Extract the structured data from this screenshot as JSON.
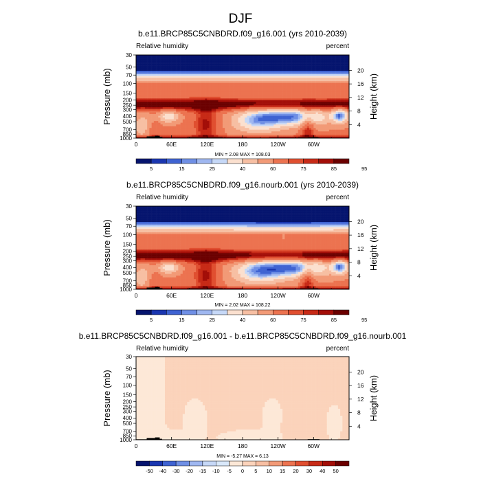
{
  "title": "DJF",
  "colors": {
    "rh_scale": [
      "#05146e",
      "#1a36b0",
      "#3f63d2",
      "#6f8fe5",
      "#9fb7f0",
      "#c6d8f7",
      "#fbe0cf",
      "#f7bfa3",
      "#f29a77",
      "#ec7350",
      "#e04f30",
      "#c72a17",
      "#a30e08",
      "#6b0000"
    ],
    "diff_scale": [
      "#05146e",
      "#1a36b0",
      "#3f63d2",
      "#6f8fe5",
      "#9fb7f0",
      "#c6d8f7",
      "#d9e8fa",
      "#fde8d7",
      "#fbd3bb",
      "#f7bfa3",
      "#f29a77",
      "#ec7350",
      "#e04f30",
      "#c72a17",
      "#a30e08",
      "#6b0000"
    ],
    "terrain": "#000000"
  },
  "chart_data": [
    {
      "type": "heatmap",
      "panel_title": "b.e11.BRCP85C5CNBDRD.f09_g16.001 (yrs 2010-2039)",
      "left_label": "Relative humidity",
      "right_label": "percent",
      "ylabel": "Pressure (mb)",
      "y2label": "Height (km)",
      "x_ticks": [
        "0",
        "60E",
        "120E",
        "180",
        "120W",
        "60W"
      ],
      "x_tick_values": [
        0,
        60,
        120,
        180,
        240,
        300
      ],
      "x_range": [
        0,
        360
      ],
      "y_ticks": [
        "1000",
        "850",
        "700",
        "500",
        "400",
        "300",
        "250",
        "200",
        "150",
        "100",
        "70",
        "50",
        "30"
      ],
      "y_tick_values": [
        1000,
        850,
        700,
        500,
        400,
        300,
        250,
        200,
        150,
        100,
        70,
        50,
        30
      ],
      "y_range": [
        1000,
        30
      ],
      "y2_ticks": [
        "4",
        "8",
        "12",
        "16",
        "20"
      ],
      "y2_tick_values": [
        4,
        8,
        12,
        16,
        20
      ],
      "min_max": "MIN =   2.08  MAX = 108.03",
      "levels": [
        5,
        10,
        15,
        20,
        25,
        30,
        40,
        50,
        60,
        70,
        75,
        80,
        85,
        90,
        95
      ],
      "colorbar_labels": [
        "5",
        "15",
        "25",
        "40",
        "60",
        "75",
        "85",
        "95"
      ],
      "kind": "rh"
    },
    {
      "type": "heatmap",
      "panel_title": "b.e11.BRCP85C5CNBDRD.f09_g16.nourb.001 (yrs 2010-2039)",
      "left_label": "Relative humidity",
      "right_label": "percent",
      "ylabel": "Pressure (mb)",
      "y2label": "Height (km)",
      "x_ticks": [
        "0",
        "60E",
        "120E",
        "180",
        "120W",
        "60W"
      ],
      "x_tick_values": [
        0,
        60,
        120,
        180,
        240,
        300
      ],
      "x_range": [
        0,
        360
      ],
      "y_ticks": [
        "1000",
        "850",
        "700",
        "500",
        "400",
        "300",
        "250",
        "200",
        "150",
        "100",
        "70",
        "50",
        "30"
      ],
      "y_tick_values": [
        1000,
        850,
        700,
        500,
        400,
        300,
        250,
        200,
        150,
        100,
        70,
        50,
        30
      ],
      "y_range": [
        1000,
        30
      ],
      "y2_ticks": [
        "4",
        "8",
        "12",
        "16",
        "20"
      ],
      "y2_tick_values": [
        4,
        8,
        12,
        16,
        20
      ],
      "min_max": "MIN =   2.02  MAX = 108.22",
      "levels": [
        5,
        10,
        15,
        20,
        25,
        30,
        40,
        50,
        60,
        70,
        75,
        80,
        85,
        90,
        95
      ],
      "colorbar_labels": [
        "5",
        "15",
        "25",
        "40",
        "60",
        "75",
        "85",
        "95"
      ],
      "kind": "rh"
    },
    {
      "type": "heatmap",
      "panel_title": "b.e11.BRCP85C5CNBDRD.f09_g16.001 - b.e11.BRCP85C5CNBDRD.f09_g16.nourb.001",
      "left_label": "Relative humidity",
      "right_label": "percent",
      "ylabel": "Pressure (mb)",
      "y2label": "Height (km)",
      "x_ticks": [
        "0",
        "60E",
        "120E",
        "180",
        "120W",
        "60W"
      ],
      "x_tick_values": [
        0,
        60,
        120,
        180,
        240,
        300
      ],
      "x_range": [
        0,
        360
      ],
      "y_ticks": [
        "1000",
        "850",
        "700",
        "500",
        "400",
        "300",
        "250",
        "200",
        "150",
        "100",
        "70",
        "50",
        "30"
      ],
      "y_tick_values": [
        1000,
        850,
        700,
        500,
        400,
        300,
        250,
        200,
        150,
        100,
        70,
        50,
        30
      ],
      "y_range": [
        1000,
        30
      ],
      "y2_ticks": [
        "4",
        "8",
        "12",
        "16",
        "20"
      ],
      "y2_tick_values": [
        4,
        8,
        12,
        16,
        20
      ],
      "min_max": "MIN =  -5.27  MAX =   6.13",
      "levels": [
        -50,
        -40,
        -30,
        -20,
        -15,
        -10,
        -5,
        0,
        5,
        10,
        15,
        20,
        30,
        40,
        50
      ],
      "colorbar_labels": [
        "-50",
        "-40",
        "-30",
        "-20",
        "-15",
        "-10",
        "-5",
        "0",
        "5",
        "10",
        "15",
        "20",
        "30",
        "40",
        "50"
      ],
      "kind": "diff"
    }
  ]
}
